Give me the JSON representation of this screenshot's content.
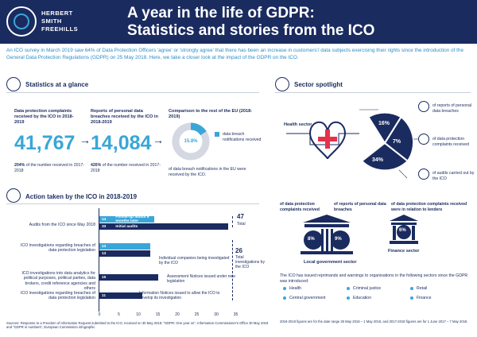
{
  "header": {
    "logo_line1": "HERBERT",
    "logo_line2": "SMITH",
    "logo_line3": "FREEHILLS",
    "title_line1": "A year in the life of GDPR:",
    "title_line2": "Statistics and stories from the ICO"
  },
  "intro": "An ICO survey in March 2019 saw 64% of Data Protection Officers 'agree' or 'strongly agree' that there has been an increase in customers'/ data subjects exercising their rights since the introduction of the General Data Protection Regulations (GDPR) on 25 May 2018. Here, we take a closer look at the impact of the GDPR on the ICO.",
  "stats": {
    "title": "Statistics at a glance",
    "complaints_label": "Data protection complaints received by the ICO in 2018-2019",
    "complaints_value": "41,767",
    "complaints_pct": "204%",
    "complaints_note": "of the number received in 2017-2018",
    "breaches_label": "Reports of personal data breaches received by the ICO in 2018-2019",
    "breaches_value": "14,084",
    "breaches_pct": "426%",
    "breaches_note": "of the number received in 2017-2018",
    "eu_label": "Comparison to the rest of the EU (2018-2019)",
    "eu_pct": "15.8%",
    "eu_legend": "data breach notifications received",
    "eu_note": "of data breach notifications in the EU were received by the ICO.",
    "arrow": "→"
  },
  "actions": {
    "title": "Action taken by the ICO in 2018-2019",
    "rows": [
      {
        "label": "Audits from the ICO since May 2018",
        "bars": [
          {
            "v": "14",
            "t": "Follow-up audits 6 months later"
          },
          {
            "v": "33",
            "t": "Initial audits"
          }
        ]
      },
      {
        "label": "ICO investigations regarding breaches of data protection legislation",
        "bars": [
          {
            "v": "13",
            "t": ""
          },
          {
            "v": "13",
            "t": ""
          }
        ]
      },
      {
        "label": "ICO investigations into data analytics for political purposes, political parties, data brokers, credit reference agencies and others",
        "bars": [
          {
            "v": "15",
            "t": ""
          }
        ]
      },
      {
        "label": "ICO investigations regarding breaches of data protection legislation",
        "bars": [
          {
            "v": "11",
            "t": ""
          }
        ]
      }
    ],
    "ann_companies": "Individual companies being investigated by the ICO",
    "ann_assessment": "Assessment Notices issued under new legislation",
    "ann_information": "Information Notices issued to allow the ICO to develop its investigation",
    "total_audits_value": "47",
    "total_audits_label": "Total",
    "total_invest_value": "26",
    "total_invest_label": "Total investigations by the ICO",
    "ticks": [
      "0",
      "5",
      "10",
      "15",
      "20",
      "25",
      "30",
      "35"
    ]
  },
  "sector": {
    "title": "Sector spotlight",
    "health_label": "Health sector",
    "health_pct1": "16%",
    "health_pct2": "7%",
    "health_pct3": "34%",
    "legend1": "of reports of personal data breaches",
    "legend2": "of data protection complaints received",
    "legend3": "of audits carried out by the ICO",
    "lg_complaints": "of data protection complaints received",
    "lg_breaches": "of reports of personal data breaches",
    "lg_pct1": "8%",
    "lg_pct2": "9%",
    "lg_label": "Local government sector",
    "fin_label_top": "of data protection complaints received were in relation to lenders",
    "fin_pct": "6%",
    "fin_label": "Finance sector",
    "reprimand_text": "The ICO has issued reprimands and warnings to organisations in the following sectors since the GDPR was introduced:",
    "sectors": [
      "Health",
      "Criminal justice",
      "Retail",
      "Central government",
      "Education",
      "Finance"
    ]
  },
  "footer": {
    "sources": "Sources: Response to a Freedom of Information Request submitted to the ICO, received on 30 May 2019; \"GDPR: One year on\", Information Commissioner's Office 30 May 2019 and \"GDPR in numbers\", European Commission infographic",
    "note": "2018-2019 figures are for the date range 25 May 2018 – 1 May 2019, and 2017-2018 figures are for 1 June 2017 – 7 May 2018."
  },
  "colors": {
    "navy": "#1a2b5f",
    "blue": "#3aa6d8",
    "gray": "#c9cfdc"
  }
}
